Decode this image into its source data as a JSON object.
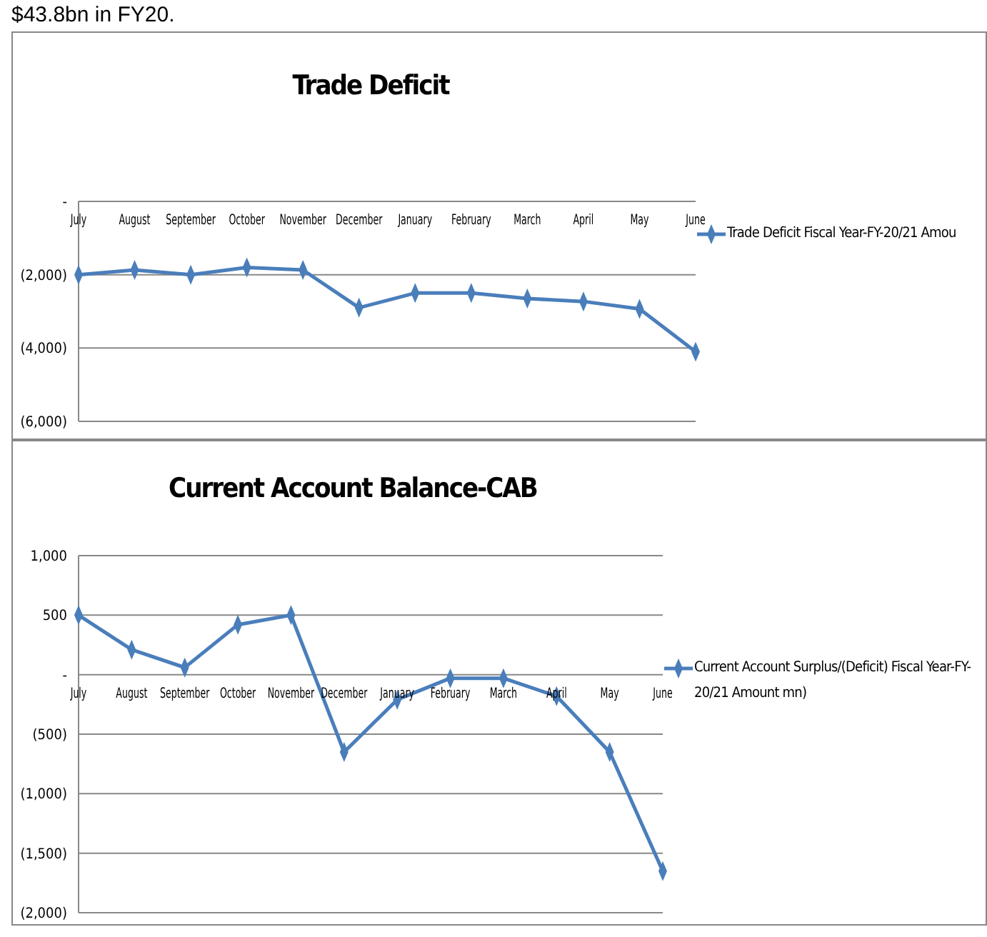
{
  "chart_data": [
    {
      "type": "line",
      "title": "Trade Deficit",
      "annotations": [
        "$43.8bn in FY20."
      ],
      "categories": [
        "July",
        "August",
        "September",
        "October",
        "November",
        "December",
        "January",
        "February",
        "March",
        "April",
        "May",
        "June"
      ],
      "series": [
        {
          "name": "Trade Deficit Fiscal Year-FY-20/21 Amou",
          "color": "#4a7ebb",
          "values": [
            -2000,
            -1870,
            -2000,
            -1800,
            -1870,
            -2900,
            -2500,
            -2500,
            -2650,
            -2730,
            -2930,
            -4100
          ]
        }
      ],
      "ylim": [
        -6000,
        0
      ],
      "yticks": [
        {
          "value": -6000,
          "label": "(6,000)"
        },
        {
          "value": -4000,
          "label": "(4,000)"
        },
        {
          "value": -2000,
          "label": "(2,000)"
        },
        {
          "value": 0,
          "label": "-"
        }
      ],
      "grid": "y",
      "legend": "right",
      "marker": "diamond",
      "line_style": "solid"
    },
    {
      "type": "line",
      "title": "Current Account Balance-CAB",
      "categories": [
        "July",
        "August",
        "September",
        "October",
        "November",
        "December",
        "January",
        "February",
        "March",
        "April",
        "May",
        "June"
      ],
      "series": [
        {
          "name": "Current Account Surplus/(Deficit) Fiscal Year-FY-20/21 Amount mn)",
          "color": "#4a7ebb",
          "values": [
            500,
            210,
            60,
            420,
            500,
            -650,
            -210,
            -30,
            -30,
            -180,
            -650,
            -1650
          ]
        }
      ],
      "ylim": [
        -2000,
        1000
      ],
      "yticks": [
        {
          "value": -2000,
          "label": "(2,000)"
        },
        {
          "value": -1500,
          "label": "(1,500)"
        },
        {
          "value": -1000,
          "label": "(1,000)"
        },
        {
          "value": -500,
          "label": "(500)"
        },
        {
          "value": 0,
          "label": "-"
        },
        {
          "value": 500,
          "label": "500"
        },
        {
          "value": 1000,
          "label": "1,000"
        }
      ],
      "grid": "y",
      "legend": "right",
      "marker": "diamond",
      "line_style": "solid"
    }
  ]
}
